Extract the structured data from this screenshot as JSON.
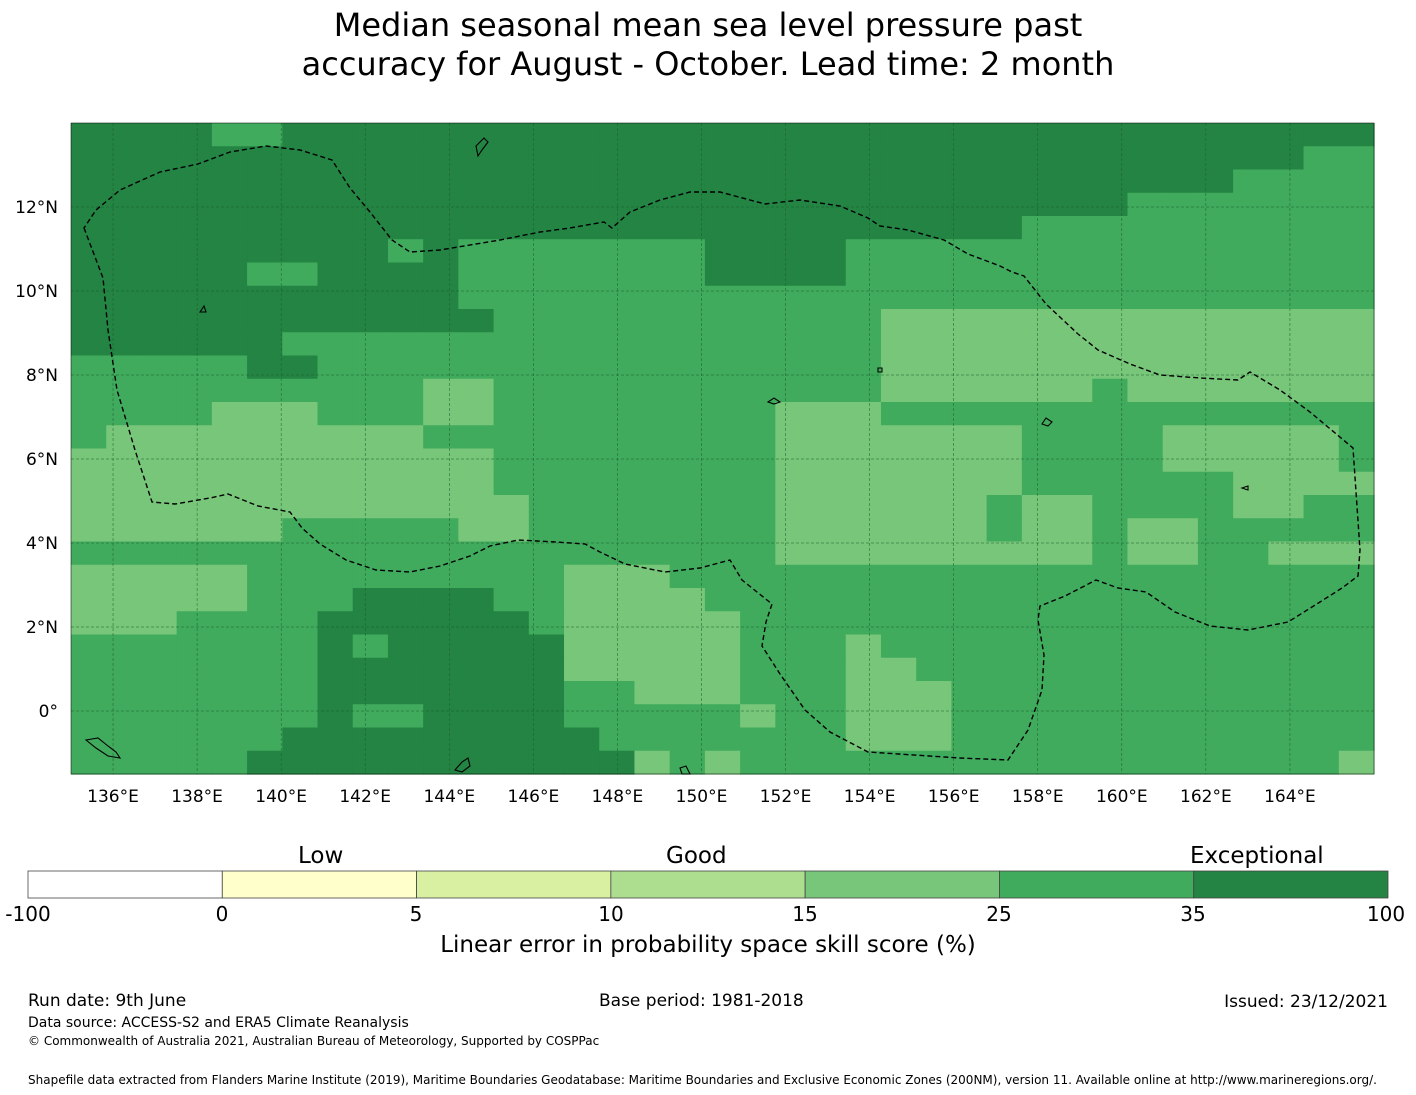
{
  "title": {
    "line1": "Median seasonal mean sea level pressure past",
    "line2": "accuracy for August - October. Lead time: 2 month"
  },
  "map": {
    "lon_labels": [
      "136°E",
      "138°E",
      "140°E",
      "142°E",
      "144°E",
      "146°E",
      "148°E",
      "150°E",
      "152°E",
      "154°E",
      "156°E",
      "158°E",
      "160°E",
      "162°E",
      "164°E"
    ],
    "lat_labels": [
      "12°N",
      "10°N",
      "8°N",
      "6°N",
      "4°N",
      "2°N",
      "0°"
    ],
    "lon_range": [
      135,
      166
    ],
    "lat_range": [
      -1.5,
      14
    ]
  },
  "colorbar": {
    "category_labels": [
      "Low",
      "Good",
      "Exceptional"
    ],
    "ticks": [
      "-100",
      "0",
      "5",
      "10",
      "15",
      "25",
      "35",
      "100"
    ],
    "colors": [
      "#ffffff",
      "#ffffcc",
      "#d9f0a3",
      "#addd8e",
      "#78c679",
      "#41ab5d",
      "#238443"
    ],
    "title": "Linear error in probability space skill score (%)"
  },
  "footer": {
    "run_date": "Run date: 9th June",
    "base_period": "Base period: 1981-2018",
    "issued": "Issued: 23/12/2021",
    "data_source": "Data source: ACCESS-S2 and ERA5 Climate Reanalysis",
    "copyright": "© Commonwealth of Australia 2021, Australian Bureau of Meteorology, Supported by COSPPac",
    "shapefile": "Shapefile data extracted from Flanders Marine Institute (2019), Maritime Boundaries Geodatabase: Maritime Boundaries and Exclusive Economic Zones (200NM), version 11. Available online at http://www.marineregions.org/."
  }
}
